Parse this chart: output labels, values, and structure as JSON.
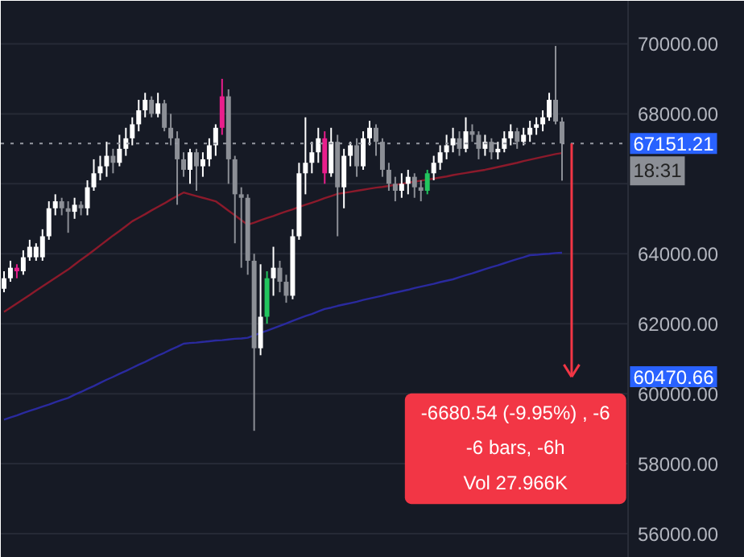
{
  "chart_data": {
    "type": "candlestick",
    "categories": [
      null,
      null,
      null,
      null,
      null,
      null,
      null,
      null,
      null,
      null,
      null,
      null,
      null,
      null,
      null,
      null,
      null,
      null,
      null,
      null,
      null,
      null,
      null,
      null,
      null,
      null,
      null,
      null,
      null,
      null,
      null,
      null,
      null,
      null,
      null,
      null,
      null,
      null,
      null,
      null,
      null,
      null,
      null,
      null,
      null,
      null,
      null,
      null,
      null,
      null,
      null,
      null,
      null,
      null,
      null,
      null,
      null,
      null,
      null,
      null,
      null,
      null,
      null,
      null,
      null,
      null,
      null,
      null,
      null,
      null,
      null,
      null,
      null,
      null,
      null,
      null,
      null,
      null,
      null,
      null,
      null,
      null,
      null,
      null,
      null,
      null,
      null,
      null
    ],
    "ohlc": [
      [
        63000,
        63500,
        62900,
        63300
      ],
      [
        63300,
        63800,
        63200,
        63600
      ],
      [
        63600,
        63700,
        63300,
        63500
      ],
      [
        63500,
        64100,
        63400,
        63900
      ],
      [
        63900,
        64400,
        63800,
        64200
      ],
      [
        63900,
        64300,
        63800,
        64200
      ],
      [
        63900,
        64700,
        63800,
        64500
      ],
      [
        64500,
        65500,
        64400,
        65300
      ],
      [
        65300,
        65700,
        65100,
        65500
      ],
      [
        65500,
        65600,
        65100,
        65300
      ],
      [
        65300,
        65500,
        64600,
        65200
      ],
      [
        65200,
        65600,
        65000,
        65400
      ],
      [
        65400,
        65500,
        65100,
        65300
      ],
      [
        65300,
        66100,
        65100,
        65900
      ],
      [
        65900,
        66700,
        65800,
        66300
      ],
      [
        66300,
        66800,
        66100,
        66500
      ],
      [
        66500,
        67200,
        66200,
        66800
      ],
      [
        66800,
        67000,
        66300,
        66600
      ],
      [
        66600,
        67400,
        66500,
        67000
      ],
      [
        67000,
        67600,
        66800,
        67300
      ],
      [
        67300,
        67900,
        67100,
        67700
      ],
      [
        67700,
        68400,
        67500,
        68100
      ],
      [
        68100,
        68600,
        67900,
        68400
      ],
      [
        68400,
        68500,
        67900,
        68000
      ],
      [
        68000,
        68600,
        67900,
        68300
      ],
      [
        68300,
        68400,
        67500,
        67600
      ],
      [
        67600,
        68000,
        67100,
        67300
      ],
      [
        67300,
        67500,
        65400,
        66700
      ],
      [
        66700,
        66900,
        66200,
        66400
      ],
      [
        66400,
        67000,
        66000,
        66900
      ],
      [
        66900,
        67000,
        65800,
        66500
      ],
      [
        66500,
        66900,
        66200,
        66700
      ],
      [
        66700,
        67300,
        66500,
        67100
      ],
      [
        67100,
        67700,
        66800,
        67600
      ],
      [
        67600,
        69000,
        67400,
        68500
      ],
      [
        68500,
        68700,
        66000,
        66700
      ],
      [
        66700,
        66800,
        64300,
        65700
      ],
      [
        65700,
        65900,
        63600,
        65600
      ],
      [
        65600,
        65700,
        63400,
        63800
      ],
      [
        63800,
        64000,
        58940,
        61300
      ],
      [
        61300,
        63700,
        61100,
        62200
      ],
      [
        62200,
        63500,
        62000,
        63300
      ],
      [
        63300,
        64200,
        62800,
        63600
      ],
      [
        63600,
        63800,
        62900,
        63200
      ],
      [
        63200,
        63400,
        62600,
        62800
      ],
      [
        62800,
        64700,
        62700,
        64500
      ],
      [
        64500,
        66600,
        64400,
        66300
      ],
      [
        66300,
        67900,
        65700,
        66600
      ],
      [
        66600,
        67200,
        66300,
        66900
      ],
      [
        66900,
        67600,
        66600,
        67300
      ],
      [
        67300,
        67500,
        66000,
        66300
      ],
      [
        66300,
        67600,
        66200,
        67200
      ],
      [
        67200,
        67400,
        64500,
        65900
      ],
      [
        65900,
        67000,
        65300,
        66800
      ],
      [
        66800,
        67200,
        66500,
        67100
      ],
      [
        67100,
        67300,
        66200,
        66500
      ],
      [
        66500,
        67500,
        66400,
        67300
      ],
      [
        67300,
        67800,
        67100,
        67600
      ],
      [
        67600,
        67700,
        66800,
        67200
      ],
      [
        67200,
        67300,
        66200,
        66400
      ],
      [
        66400,
        66600,
        65800,
        66000
      ],
      [
        66000,
        66200,
        65500,
        65800
      ],
      [
        65800,
        66300,
        65600,
        66000
      ],
      [
        66000,
        66400,
        65700,
        66200
      ],
      [
        66200,
        66300,
        65600,
        65900
      ],
      [
        65900,
        66100,
        65500,
        65800
      ],
      [
        65800,
        66400,
        65700,
        66300
      ],
      [
        66300,
        66800,
        66100,
        66600
      ],
      [
        66600,
        67100,
        66400,
        66900
      ],
      [
        66900,
        67400,
        66700,
        67100
      ],
      [
        67100,
        67600,
        66900,
        67300
      ],
      [
        67300,
        67500,
        66800,
        67000
      ],
      [
        67000,
        67900,
        66900,
        67500
      ],
      [
        67500,
        67700,
        67200,
        67400
      ],
      [
        67400,
        67500,
        66700,
        67000
      ],
      [
        67000,
        67400,
        66800,
        67200
      ],
      [
        67200,
        67300,
        66700,
        66900
      ],
      [
        66900,
        67200,
        66700,
        67000
      ],
      [
        67000,
        67500,
        66900,
        67300
      ],
      [
        67300,
        67700,
        67100,
        67500
      ],
      [
        67500,
        67600,
        67000,
        67200
      ],
      [
        67200,
        67600,
        67100,
        67400
      ],
      [
        67400,
        67800,
        67200,
        67600
      ],
      [
        67600,
        67900,
        67400,
        67700
      ],
      [
        67700,
        68100,
        67500,
        67900
      ],
      [
        67900,
        68600,
        67800,
        68400
      ],
      [
        68400,
        69940,
        67700,
        67780
      ],
      [
        67780,
        67900,
        66090,
        67151
      ]
    ],
    "colors": [
      "#ffffff",
      "#ffffff",
      "#e91e8c",
      "#ffffff",
      "#ffffff",
      "#ffffff",
      "#ffffff",
      "#ffffff",
      "#ffffff",
      "#8c8f96",
      "#8c8f96",
      "#ffffff",
      "#8c8f96",
      "#ffffff",
      "#ffffff",
      "#ffffff",
      "#ffffff",
      "#8c8f96",
      "#ffffff",
      "#ffffff",
      "#ffffff",
      "#ffffff",
      "#ffffff",
      "#8c8f96",
      "#ffffff",
      "#8c8f96",
      "#8c8f96",
      "#8c8f96",
      "#8c8f96",
      "#ffffff",
      "#8c8f96",
      "#ffffff",
      "#ffffff",
      "#ffffff",
      "#e91e8c",
      "#8c8f96",
      "#8c8f96",
      "#8c8f96",
      "#8c8f96",
      "#8c8f96",
      "#ffffff",
      "#22c55e",
      "#ffffff",
      "#8c8f96",
      "#8c8f96",
      "#ffffff",
      "#ffffff",
      "#ffffff",
      "#ffffff",
      "#ffffff",
      "#e91e8c",
      "#ffffff",
      "#8c8f96",
      "#ffffff",
      "#ffffff",
      "#8c8f96",
      "#ffffff",
      "#ffffff",
      "#8c8f96",
      "#8c8f96",
      "#8c8f96",
      "#8c8f96",
      "#ffffff",
      "#ffffff",
      "#8c8f96",
      "#8c8f96",
      "#22c55e",
      "#ffffff",
      "#ffffff",
      "#ffffff",
      "#ffffff",
      "#8c8f96",
      "#ffffff",
      "#8c8f96",
      "#8c8f96",
      "#ffffff",
      "#8c8f96",
      "#ffffff",
      "#ffffff",
      "#ffffff",
      "#8c8f96",
      "#ffffff",
      "#ffffff",
      "#ffffff",
      "#ffffff",
      "#ffffff",
      "#8c8f96",
      "#8c8f96"
    ],
    "series": [
      {
        "type": "line",
        "color": "#8b1a2b",
        "values": [
          62340,
          62460,
          62580,
          62700,
          62820,
          62950,
          63070,
          63190,
          63310,
          63430,
          63550,
          63690,
          63830,
          63960,
          64100,
          64240,
          64380,
          64520,
          64650,
          64790,
          64930,
          65030,
          65130,
          65240,
          65340,
          65440,
          65550,
          65650,
          65750,
          65700,
          65650,
          65600,
          65550,
          65500,
          65370,
          65230,
          65100,
          64960,
          64830,
          64890,
          64960,
          65020,
          65080,
          65150,
          65210,
          65270,
          65340,
          65400,
          65460,
          65520,
          65590,
          65650,
          65710,
          65740,
          65770,
          65800,
          65830,
          65860,
          65890,
          65910,
          65940,
          65970,
          66000,
          66030,
          66060,
          66090,
          66120,
          66150,
          66180,
          66210,
          66250,
          66280,
          66310,
          66340,
          66370,
          66400,
          66440,
          66480,
          66520,
          66560,
          66600,
          66650,
          66690,
          66730,
          66770,
          66810,
          66850,
          66880
        ]
      },
      {
        "type": "line",
        "color": "#2a2a9e",
        "values": [
          59260,
          59320,
          59380,
          59450,
          59510,
          59570,
          59630,
          59690,
          59760,
          59820,
          59880,
          59970,
          60050,
          60140,
          60220,
          60310,
          60400,
          60480,
          60570,
          60650,
          60740,
          60830,
          60910,
          61000,
          61090,
          61170,
          61260,
          61340,
          61430,
          61450,
          61460,
          61480,
          61500,
          61520,
          61530,
          61550,
          61570,
          61580,
          61600,
          61670,
          61740,
          61800,
          61870,
          61940,
          62010,
          62080,
          62150,
          62220,
          62280,
          62350,
          62420,
          62460,
          62510,
          62550,
          62590,
          62630,
          62680,
          62720,
          62760,
          62800,
          62850,
          62890,
          62930,
          62970,
          63020,
          63060,
          63100,
          63140,
          63190,
          63230,
          63270,
          63330,
          63390,
          63440,
          63500,
          63560,
          63620,
          63670,
          63730,
          63790,
          63850,
          63900,
          63960,
          63970,
          63990,
          64000,
          64020,
          64030
        ]
      }
    ],
    "ylim": [
      55310,
      71230
    ],
    "yticks": [
      {
        "value": 56000,
        "label": "56000.00"
      },
      {
        "value": 58000,
        "label": "58000.00"
      },
      {
        "value": 60000,
        "label": "60000.00"
      },
      {
        "value": 62000,
        "label": "62000.00"
      },
      {
        "value": 64000,
        "label": "64000.00"
      },
      {
        "value": 66000,
        "label": null
      },
      {
        "value": 68000,
        "label": "68000.00"
      },
      {
        "value": 70000,
        "label": "70000.00"
      }
    ],
    "tick_labels": "y",
    "grid": "y",
    "ref_lines": [
      {
        "axis": "y",
        "value": 67151.21,
        "label": "67151.21",
        "color": "#9598a1",
        "line_style": "dotted"
      }
    ],
    "annotations": [
      "18:31",
      "60470.66",
      "-6680.54 (-9.95%) , -6",
      "-6 bars, -6h",
      "Vol 27.966K"
    ]
  }
}
